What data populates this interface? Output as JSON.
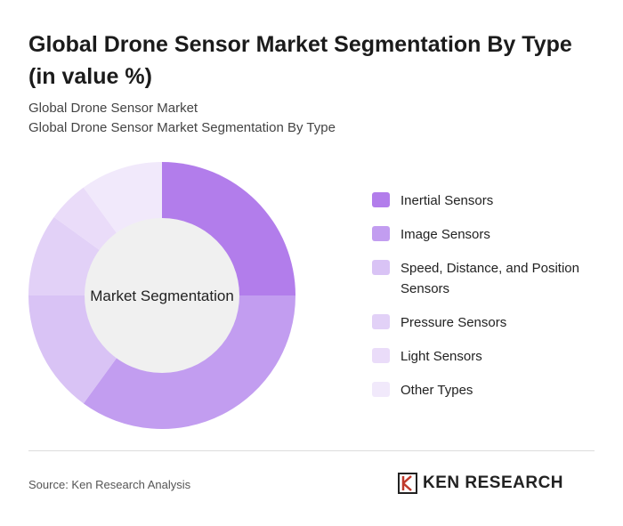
{
  "header": {
    "title": "Global Drone Sensor Market Segmentation By Type (in value %)",
    "subtitle_lines": [
      "Global Drone Sensor Market",
      "Global Drone Sensor Market Segmentation By Type"
    ]
  },
  "chart_data": {
    "type": "donut",
    "center_label": "Market Segmentation",
    "categories": [
      "Inertial Sensors",
      "Image Sensors",
      "Speed, Distance, and Position Sensors",
      "Pressure Sensors",
      "Light Sensors",
      "Other Types"
    ],
    "values": [
      25,
      35,
      15,
      10,
      5,
      10
    ],
    "colors": [
      "#b27deb",
      "#c29df0",
      "#d9c3f5",
      "#e2d1f7",
      "#eadcf9",
      "#f1e9fb"
    ]
  },
  "footer": {
    "source": "Source: Ken Research Analysis",
    "logo": "KEN RESEARCH"
  }
}
